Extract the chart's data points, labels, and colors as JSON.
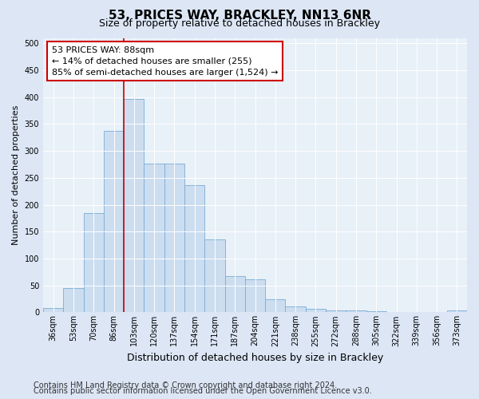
{
  "title": "53, PRICES WAY, BRACKLEY, NN13 6NR",
  "subtitle": "Size of property relative to detached houses in Brackley",
  "xlabel": "Distribution of detached houses by size in Brackley",
  "ylabel": "Number of detached properties",
  "categories": [
    "36sqm",
    "53sqm",
    "70sqm",
    "86sqm",
    "103sqm",
    "120sqm",
    "137sqm",
    "154sqm",
    "171sqm",
    "187sqm",
    "204sqm",
    "221sqm",
    "238sqm",
    "255sqm",
    "272sqm",
    "288sqm",
    "305sqm",
    "322sqm",
    "339sqm",
    "356sqm",
    "373sqm"
  ],
  "values": [
    8,
    45,
    185,
    337,
    397,
    276,
    276,
    237,
    135,
    68,
    62,
    25,
    11,
    6,
    4,
    3,
    2,
    1,
    1,
    0,
    3
  ],
  "bar_color": "#ccddf0",
  "bar_edge_color": "#7aadd4",
  "vline_color": "#cc0000",
  "vline_pos": 3.5,
  "annotation_text": "53 PRICES WAY: 88sqm\n← 14% of detached houses are smaller (255)\n85% of semi-detached houses are larger (1,524) →",
  "annotation_box_facecolor": "#ffffff",
  "annotation_box_edgecolor": "#cc0000",
  "ylim": [
    0,
    510
  ],
  "yticks": [
    0,
    50,
    100,
    150,
    200,
    250,
    300,
    350,
    400,
    450,
    500
  ],
  "footer_line1": "Contains HM Land Registry data © Crown copyright and database right 2024.",
  "footer_line2": "Contains public sector information licensed under the Open Government Licence v3.0.",
  "bg_color": "#dce6f5",
  "plot_bg_color": "#e8f0f8",
  "title_fontsize": 11,
  "subtitle_fontsize": 9,
  "annotation_fontsize": 8,
  "footer_fontsize": 7,
  "ylabel_fontsize": 8,
  "xlabel_fontsize": 9,
  "tick_fontsize": 7
}
